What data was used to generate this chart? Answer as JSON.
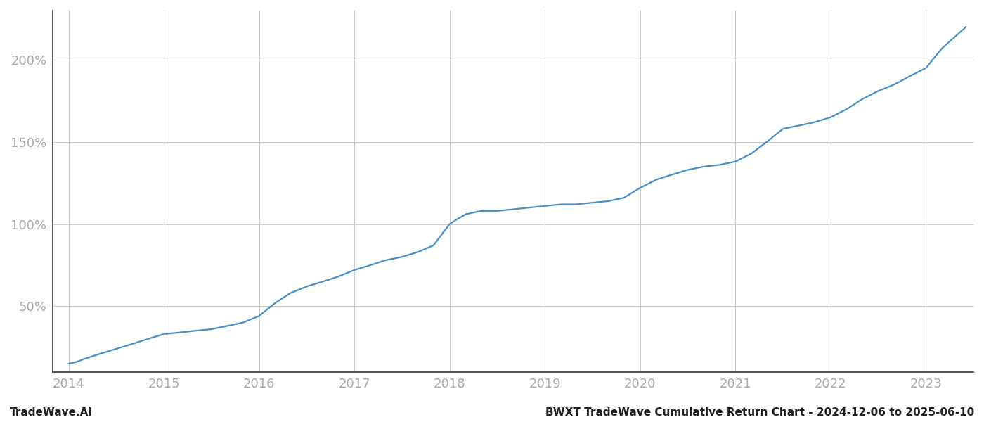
{
  "footer_left": "TradeWave.AI",
  "footer_right": "BWXT TradeWave Cumulative Return Chart - 2024-12-06 to 2025-06-10",
  "line_color": "#4a90c4",
  "line_width": 1.6,
  "background_color": "#ffffff",
  "grid_color": "#cccccc",
  "x_years": [
    2014.0,
    2014.08,
    2014.17,
    2014.33,
    2014.5,
    2014.67,
    2014.83,
    2015.0,
    2015.17,
    2015.33,
    2015.5,
    2015.67,
    2015.83,
    2016.0,
    2016.17,
    2016.33,
    2016.5,
    2016.67,
    2016.83,
    2017.0,
    2017.17,
    2017.33,
    2017.5,
    2017.67,
    2017.83,
    2018.0,
    2018.08,
    2018.17,
    2018.33,
    2018.5,
    2018.67,
    2018.83,
    2019.0,
    2019.17,
    2019.33,
    2019.5,
    2019.67,
    2019.83,
    2020.0,
    2020.17,
    2020.33,
    2020.5,
    2020.67,
    2020.83,
    2021.0,
    2021.17,
    2021.33,
    2021.5,
    2021.67,
    2021.83,
    2022.0,
    2022.17,
    2022.33,
    2022.5,
    2022.67,
    2022.83,
    2023.0,
    2023.17,
    2023.42
  ],
  "y_values": [
    15,
    16,
    18,
    21,
    24,
    27,
    30,
    33,
    34,
    35,
    36,
    38,
    40,
    44,
    52,
    58,
    62,
    65,
    68,
    72,
    75,
    78,
    80,
    83,
    87,
    100,
    103,
    106,
    108,
    108,
    109,
    110,
    111,
    112,
    112,
    113,
    114,
    116,
    122,
    127,
    130,
    133,
    135,
    136,
    138,
    143,
    150,
    158,
    160,
    162,
    165,
    170,
    176,
    181,
    185,
    190,
    195,
    207,
    220
  ],
  "yticks": [
    50,
    100,
    150,
    200
  ],
  "ytick_labels": [
    "50%",
    "100%",
    "150%",
    "200%"
  ],
  "xlim": [
    2013.83,
    2023.5
  ],
  "ylim": [
    10,
    230
  ],
  "xtick_years": [
    2014,
    2015,
    2016,
    2017,
    2018,
    2019,
    2020,
    2021,
    2022,
    2023
  ],
  "tick_color": "#aaaaaa",
  "tick_fontsize": 13,
  "footer_fontsize": 11,
  "spine_color": "#333333",
  "left_spine_color": "#333333"
}
